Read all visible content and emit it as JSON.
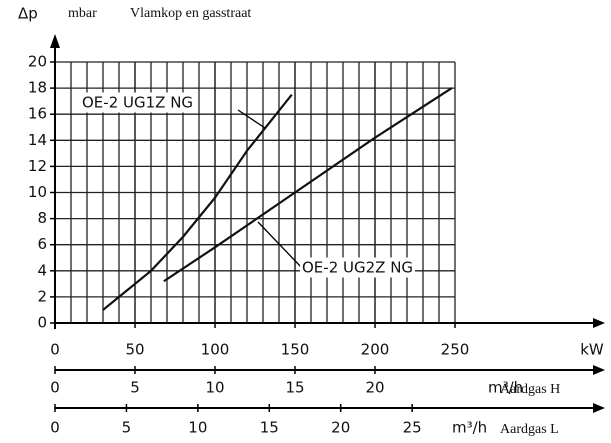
{
  "chart_data": {
    "type": "line",
    "title": "Vlamkop en gasstraat",
    "y_label": "Δp",
    "y_unit": "mbar",
    "x_label": "kW",
    "xlim": [
      0,
      250
    ],
    "xticks": [
      0,
      50,
      100,
      150,
      200,
      250
    ],
    "ylim": [
      0,
      20
    ],
    "yticks": [
      0,
      2,
      4,
      6,
      8,
      10,
      12,
      14,
      16,
      18,
      20
    ],
    "grid": true,
    "color": "#111111",
    "series": [
      {
        "name": "OE-2 UG1Z NG",
        "x": [
          30,
          45,
          60,
          80,
          100,
          120,
          135,
          148
        ],
        "values": [
          1,
          2.5,
          4,
          6.6,
          9.6,
          13.2,
          15.5,
          17.5
        ]
      },
      {
        "name": "OE-2 UG2Z NG",
        "x": [
          68,
          100,
          150,
          200,
          248
        ],
        "values": [
          3.2,
          5.8,
          10,
          14.2,
          18
        ]
      }
    ],
    "secondary_axes": [
      {
        "unit": "m³/h",
        "name": "Aardgas H",
        "xlim": [
          0,
          25
        ],
        "xticks": [
          0,
          5,
          10,
          15,
          20
        ]
      },
      {
        "unit": "m³/h",
        "name": "Aardgas L",
        "xlim": [
          0,
          28
        ],
        "xticks": [
          0,
          5,
          10,
          15,
          20,
          25
        ]
      }
    ]
  }
}
